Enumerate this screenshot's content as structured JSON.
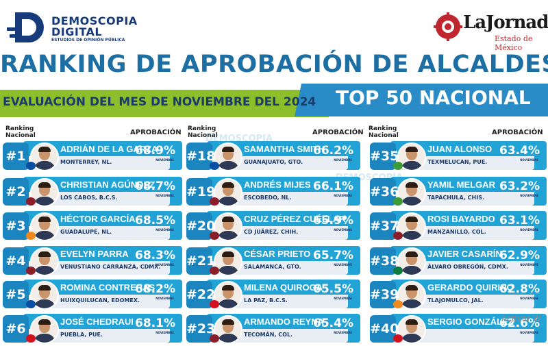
{
  "header": {
    "demoscopia_line1": "DEMOSCOPIA",
    "demoscopia_line2": "DIGITAL",
    "demoscopia_tagline": "ESTUDIOS DE OPINIÓN PÚBLICA",
    "jornada_name": "LaJornada",
    "jornada_sub": "Estado de México",
    "title": "RANKING DE APROBACIÓN DE ALCALDES",
    "evaluation": "EVALUACIÓN DEL MES DE NOVIEMBRE DEL 2024",
    "top": "TOP 50 NACIONAL",
    "colors": {
      "title_blue": "#1d6fa3",
      "green_band": "#8dbf2c",
      "blue_band": "#2a8cc6",
      "card_blue": "#22a3d6",
      "rank_blue": "#1b85bf"
    }
  },
  "columns": [
    {
      "rank_header_1": "Ranking",
      "rank_header_2": "Nacional",
      "approval_header": "APROBACIÓN",
      "entries": [
        {
          "rank": "#1",
          "name": "ADRIÁN DE LA GARZA",
          "city": "MONTERREY, NL.",
          "pct": "68.9%",
          "month": "NOVIEMBRE",
          "party": "PRI-PAN"
        },
        {
          "rank": "#2",
          "name": "CHRISTIAN AGÚNDEZ",
          "city": "LOS CABOS, B.C.S.",
          "pct": "68.7%",
          "month": "NOVIEMBRE",
          "party": "MORENA"
        },
        {
          "rank": "#3",
          "name": "HÉCTOR GARCÍA",
          "city": "GUADALUPE, NL.",
          "pct": "68.5%",
          "month": "NOVIEMBRE",
          "party": "MC"
        },
        {
          "rank": "#4",
          "name": "EVELYN PARRA",
          "city": "VENUSTIANO CARRANZA, CDMX.",
          "pct": "68.3%",
          "month": "NOVIEMBRE",
          "party": "MORENA"
        },
        {
          "rank": "#5",
          "name": "ROMINA CONTRERAS",
          "city": "HUIXQUILUCAN, EDOMEX.",
          "pct": "68.2%",
          "month": "NOVIEMBRE",
          "party": "PAN"
        },
        {
          "rank": "#6",
          "name": "JOSÉ CHEDRAUI",
          "city": "PUEBLA, PUE.",
          "pct": "68.1%",
          "month": "NOVIEMBRE",
          "party": "PT"
        }
      ]
    },
    {
      "rank_header_1": "Ranking",
      "rank_header_2": "Nacional",
      "approval_header": "APROBACIÓN",
      "entries": [
        {
          "rank": "#18",
          "name": "SAMANTHA SMITH",
          "city": "GUANAJUATO, GTO.",
          "pct": "66.2%",
          "month": "NOVIEMBRE",
          "party": "PAN"
        },
        {
          "rank": "#19",
          "name": "ANDRÉS MIJES",
          "city": "ESCOBEDO, NL.",
          "pct": "66.1%",
          "month": "NOVIEMBRE",
          "party": "MORENA"
        },
        {
          "rank": "#20",
          "name": "CRUZ PÉREZ CUÉLLAR",
          "city": "CD JUÁREZ, CHIH.",
          "pct": "65.9%",
          "month": "NOVIEMBRE",
          "party": "MORENA"
        },
        {
          "rank": "#21",
          "name": "CÉSAR PRIETO",
          "city": "SALAMANCA, GTO.",
          "pct": "65.7%",
          "month": "NOVIEMBRE",
          "party": "MORENA"
        },
        {
          "rank": "#22",
          "name": "MILENA QUIROGA",
          "city": "LA PAZ, B.C.S.",
          "pct": "65.5%",
          "month": "NOVIEMBRE",
          "party": "PT"
        },
        {
          "rank": "#23",
          "name": "ARMANDO REYNA",
          "city": "TECOMÁN, COL.",
          "pct": "65.4%",
          "month": "NOVIEMBRE",
          "party": "MORENA"
        }
      ]
    },
    {
      "rank_header_1": "Ranking",
      "rank_header_2": "Nacional",
      "approval_header": "APROBACIÓN",
      "entries": [
        {
          "rank": "#35",
          "name": "JUAN ALONSO",
          "city": "TEXMELUCAN, PUE.",
          "pct": "63.4%",
          "month": "NOVIEMBRE",
          "party": "PVEM"
        },
        {
          "rank": "#36",
          "name": "YAMIL MELGAR",
          "city": "TAPACHULA, CHIS.",
          "pct": "63.2%",
          "month": "NOVIEMBRE",
          "party": "PVEM"
        },
        {
          "rank": "#37",
          "name": "ROSI BAYARDO",
          "city": "MANZANILLO, COL.",
          "pct": "63.1%",
          "month": "NOVIEMBRE",
          "party": "MORENA"
        },
        {
          "rank": "#38",
          "name": "JAVIER CASARÍN",
          "city": "ÁLVARO OBREGÓN, CDMX.",
          "pct": "62.9%",
          "month": "NOVIEMBRE",
          "party": "PRI"
        },
        {
          "rank": "#39",
          "name": "GERARDO QUIRINO",
          "city": "TLAJOMULCO, JAL.",
          "pct": "62.8%",
          "month": "NOVIEMBRE",
          "party": "MC"
        },
        {
          "rank": "#40",
          "name": "SERGIO GONZÁLEZ",
          "city": "",
          "pct": "62.6%",
          "month": "NOVIEMBRE",
          "party": "PT"
        }
      ]
    }
  ],
  "watermark": "DEMOSCOPIA",
  "os_overlay": "Activar W"
}
